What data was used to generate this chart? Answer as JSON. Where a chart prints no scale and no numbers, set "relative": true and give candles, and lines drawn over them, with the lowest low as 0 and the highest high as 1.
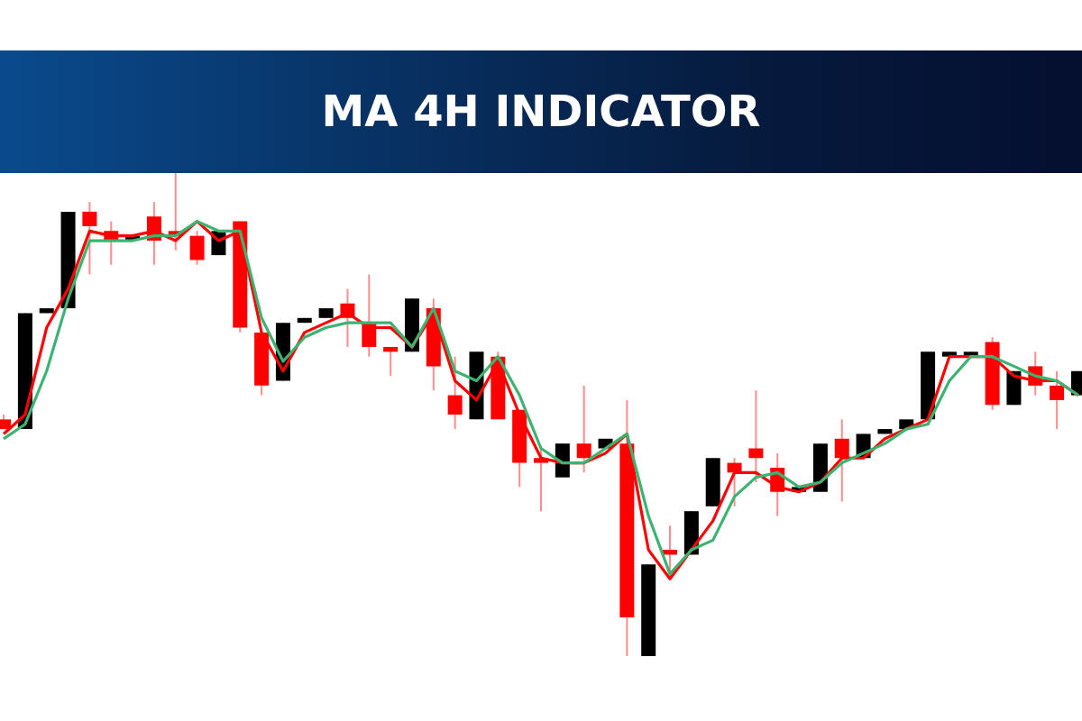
{
  "chart_data": {
    "type": "candlestick",
    "title": "MA 4H INDICATOR",
    "relative": true,
    "categories": [
      null,
      null,
      null,
      null,
      null,
      null,
      null,
      null,
      null,
      null,
      null,
      null,
      null,
      null,
      null,
      null,
      null,
      null,
      null,
      null,
      null,
      null,
      null,
      null,
      null,
      null,
      null,
      null,
      null,
      null,
      null,
      null,
      null,
      null,
      null,
      null,
      null,
      null,
      null,
      null,
      null,
      null,
      null,
      null,
      null,
      null,
      null,
      null,
      null,
      null,
      null
    ],
    "ohlc": [
      [
        0.49,
        0.5,
        0.47,
        0.47
      ],
      [
        0.47,
        0.71,
        0.47,
        0.71
      ],
      [
        0.71,
        0.72,
        0.71,
        0.72
      ],
      [
        0.72,
        0.92,
        0.72,
        0.92
      ],
      [
        0.92,
        0.94,
        0.79,
        0.89
      ],
      [
        0.88,
        0.9,
        0.81,
        0.86
      ],
      [
        0.86,
        0.87,
        0.86,
        0.87
      ],
      [
        0.91,
        0.94,
        0.81,
        0.86
      ],
      [
        0.88,
        1,
        0.84,
        0.87
      ],
      [
        0.87,
        0.88,
        0.81,
        0.82
      ],
      [
        0.83,
        0.88,
        0.83,
        0.88
      ],
      [
        0.9,
        0.9,
        0.67,
        0.68
      ],
      [
        0.67,
        0.67,
        0.54,
        0.56
      ],
      [
        0.57,
        0.69,
        0.57,
        0.69
      ],
      [
        0.69,
        0.7,
        0.69,
        0.7
      ],
      [
        0.7,
        0.72,
        0.7,
        0.72
      ],
      [
        0.73,
        0.76,
        0.64,
        0.7
      ],
      [
        0.69,
        0.79,
        0.62,
        0.64
      ],
      [
        0.64,
        0.64,
        0.58,
        0.63
      ],
      [
        0.63,
        0.74,
        0.63,
        0.74
      ],
      [
        0.72,
        0.74,
        0.55,
        0.6
      ],
      [
        0.54,
        0.62,
        0.47,
        0.5
      ],
      [
        0.49,
        0.63,
        0.49,
        0.63
      ],
      [
        0.62,
        0.63,
        0.49,
        0.49
      ],
      [
        0.51,
        0.51,
        0.35,
        0.4
      ],
      [
        0.41,
        0.43,
        0.3,
        0.4
      ],
      [
        0.37,
        0.44,
        0.37,
        0.44
      ],
      [
        0.44,
        0.56,
        0.38,
        0.41
      ],
      [
        0.43,
        0.45,
        0.43,
        0.45
      ],
      [
        0.44,
        0.53,
        0,
        0.08
      ],
      [
        0,
        0.19,
        0,
        0.19
      ],
      [
        0.22,
        0.27,
        0.16,
        0.21
      ],
      [
        0.21,
        0.3,
        0.21,
        0.3
      ],
      [
        0.31,
        0.41,
        0.31,
        0.41
      ],
      [
        0.4,
        0.41,
        0.31,
        0.38
      ],
      [
        0.43,
        0.55,
        0.36,
        0.41
      ],
      [
        0.39,
        0.42,
        0.29,
        0.34
      ],
      [
        0.34,
        0.35,
        0.34,
        0.35
      ],
      [
        0.34,
        0.44,
        0.34,
        0.44
      ],
      [
        0.45,
        0.49,
        0.32,
        0.41
      ],
      [
        0.41,
        0.46,
        0.41,
        0.46
      ],
      [
        0.46,
        0.47,
        0.46,
        0.47
      ],
      [
        0.47,
        0.49,
        0.47,
        0.49
      ],
      [
        0.49,
        0.63,
        0.49,
        0.63
      ],
      [
        0.62,
        0.63,
        0.62,
        0.63
      ],
      [
        0.62,
        0.63,
        0.62,
        0.63
      ],
      [
        0.65,
        0.66,
        0.51,
        0.52
      ],
      [
        0.52,
        0.59,
        0.52,
        0.59
      ],
      [
        0.6,
        0.63,
        0.54,
        0.56
      ],
      [
        0.56,
        0.59,
        0.47,
        0.53
      ],
      [
        0.54,
        0.59,
        0.54,
        0.59
      ]
    ],
    "colors": [
      "#ff0000",
      "#000000",
      "#000000",
      "#000000",
      "#ff0000",
      "#ff0000",
      "#000000",
      "#ff0000",
      "#ff0000",
      "#ff0000",
      "#000000",
      "#ff0000",
      "#ff0000",
      "#000000",
      "#000000",
      "#000000",
      "#ff0000",
      "#ff0000",
      "#ff0000",
      "#000000",
      "#ff0000",
      "#ff0000",
      "#000000",
      "#ff0000",
      "#ff0000",
      "#ff0000",
      "#000000",
      "#ff0000",
      "#000000",
      "#ff0000",
      "#000000",
      "#ff0000",
      "#000000",
      "#000000",
      "#ff0000",
      "#ff0000",
      "#ff0000",
      "#000000",
      "#000000",
      "#ff0000",
      "#000000",
      "#000000",
      "#000000",
      "#000000",
      "#000000",
      "#000000",
      "#ff0000",
      "#000000",
      "#ff0000",
      "#ff0000",
      "#000000"
    ],
    "series": [
      {
        "type": "line",
        "color": "#ff0000",
        "values": [
          0.46,
          0.5,
          0.68,
          0.76,
          0.88,
          0.87,
          0.87,
          0.88,
          0.86,
          0.9,
          0.86,
          0.88,
          0.67,
          0.59,
          0.67,
          0.69,
          0.71,
          0.68,
          0.68,
          0.64,
          0.71,
          0.57,
          0.53,
          0.61,
          0.5,
          0.41,
          0.4,
          0.4,
          0.42,
          0.46,
          0.22,
          0.16,
          0.22,
          0.28,
          0.38,
          0.38,
          0.35,
          0.34,
          0.36,
          0.41,
          0.41,
          0.45,
          0.47,
          0.49,
          0.62,
          0.62,
          0.62,
          0.58,
          0.57,
          0.57,
          0.54
        ]
      },
      {
        "type": "line",
        "color": "#3cb371",
        "values": [
          0.45,
          0.48,
          0.59,
          0.74,
          0.86,
          0.86,
          0.86,
          0.87,
          0.87,
          0.9,
          0.88,
          0.88,
          0.7,
          0.61,
          0.66,
          0.68,
          0.69,
          0.69,
          0.69,
          0.64,
          0.72,
          0.59,
          0.57,
          0.62,
          0.54,
          0.43,
          0.4,
          0.4,
          0.43,
          0.46,
          0.29,
          0.17,
          0.22,
          0.24,
          0.33,
          0.37,
          0.38,
          0.35,
          0.36,
          0.4,
          0.42,
          0.44,
          0.47,
          0.48,
          0.57,
          0.62,
          0.62,
          0.6,
          0.58,
          0.57,
          0.54
        ]
      }
    ]
  }
}
